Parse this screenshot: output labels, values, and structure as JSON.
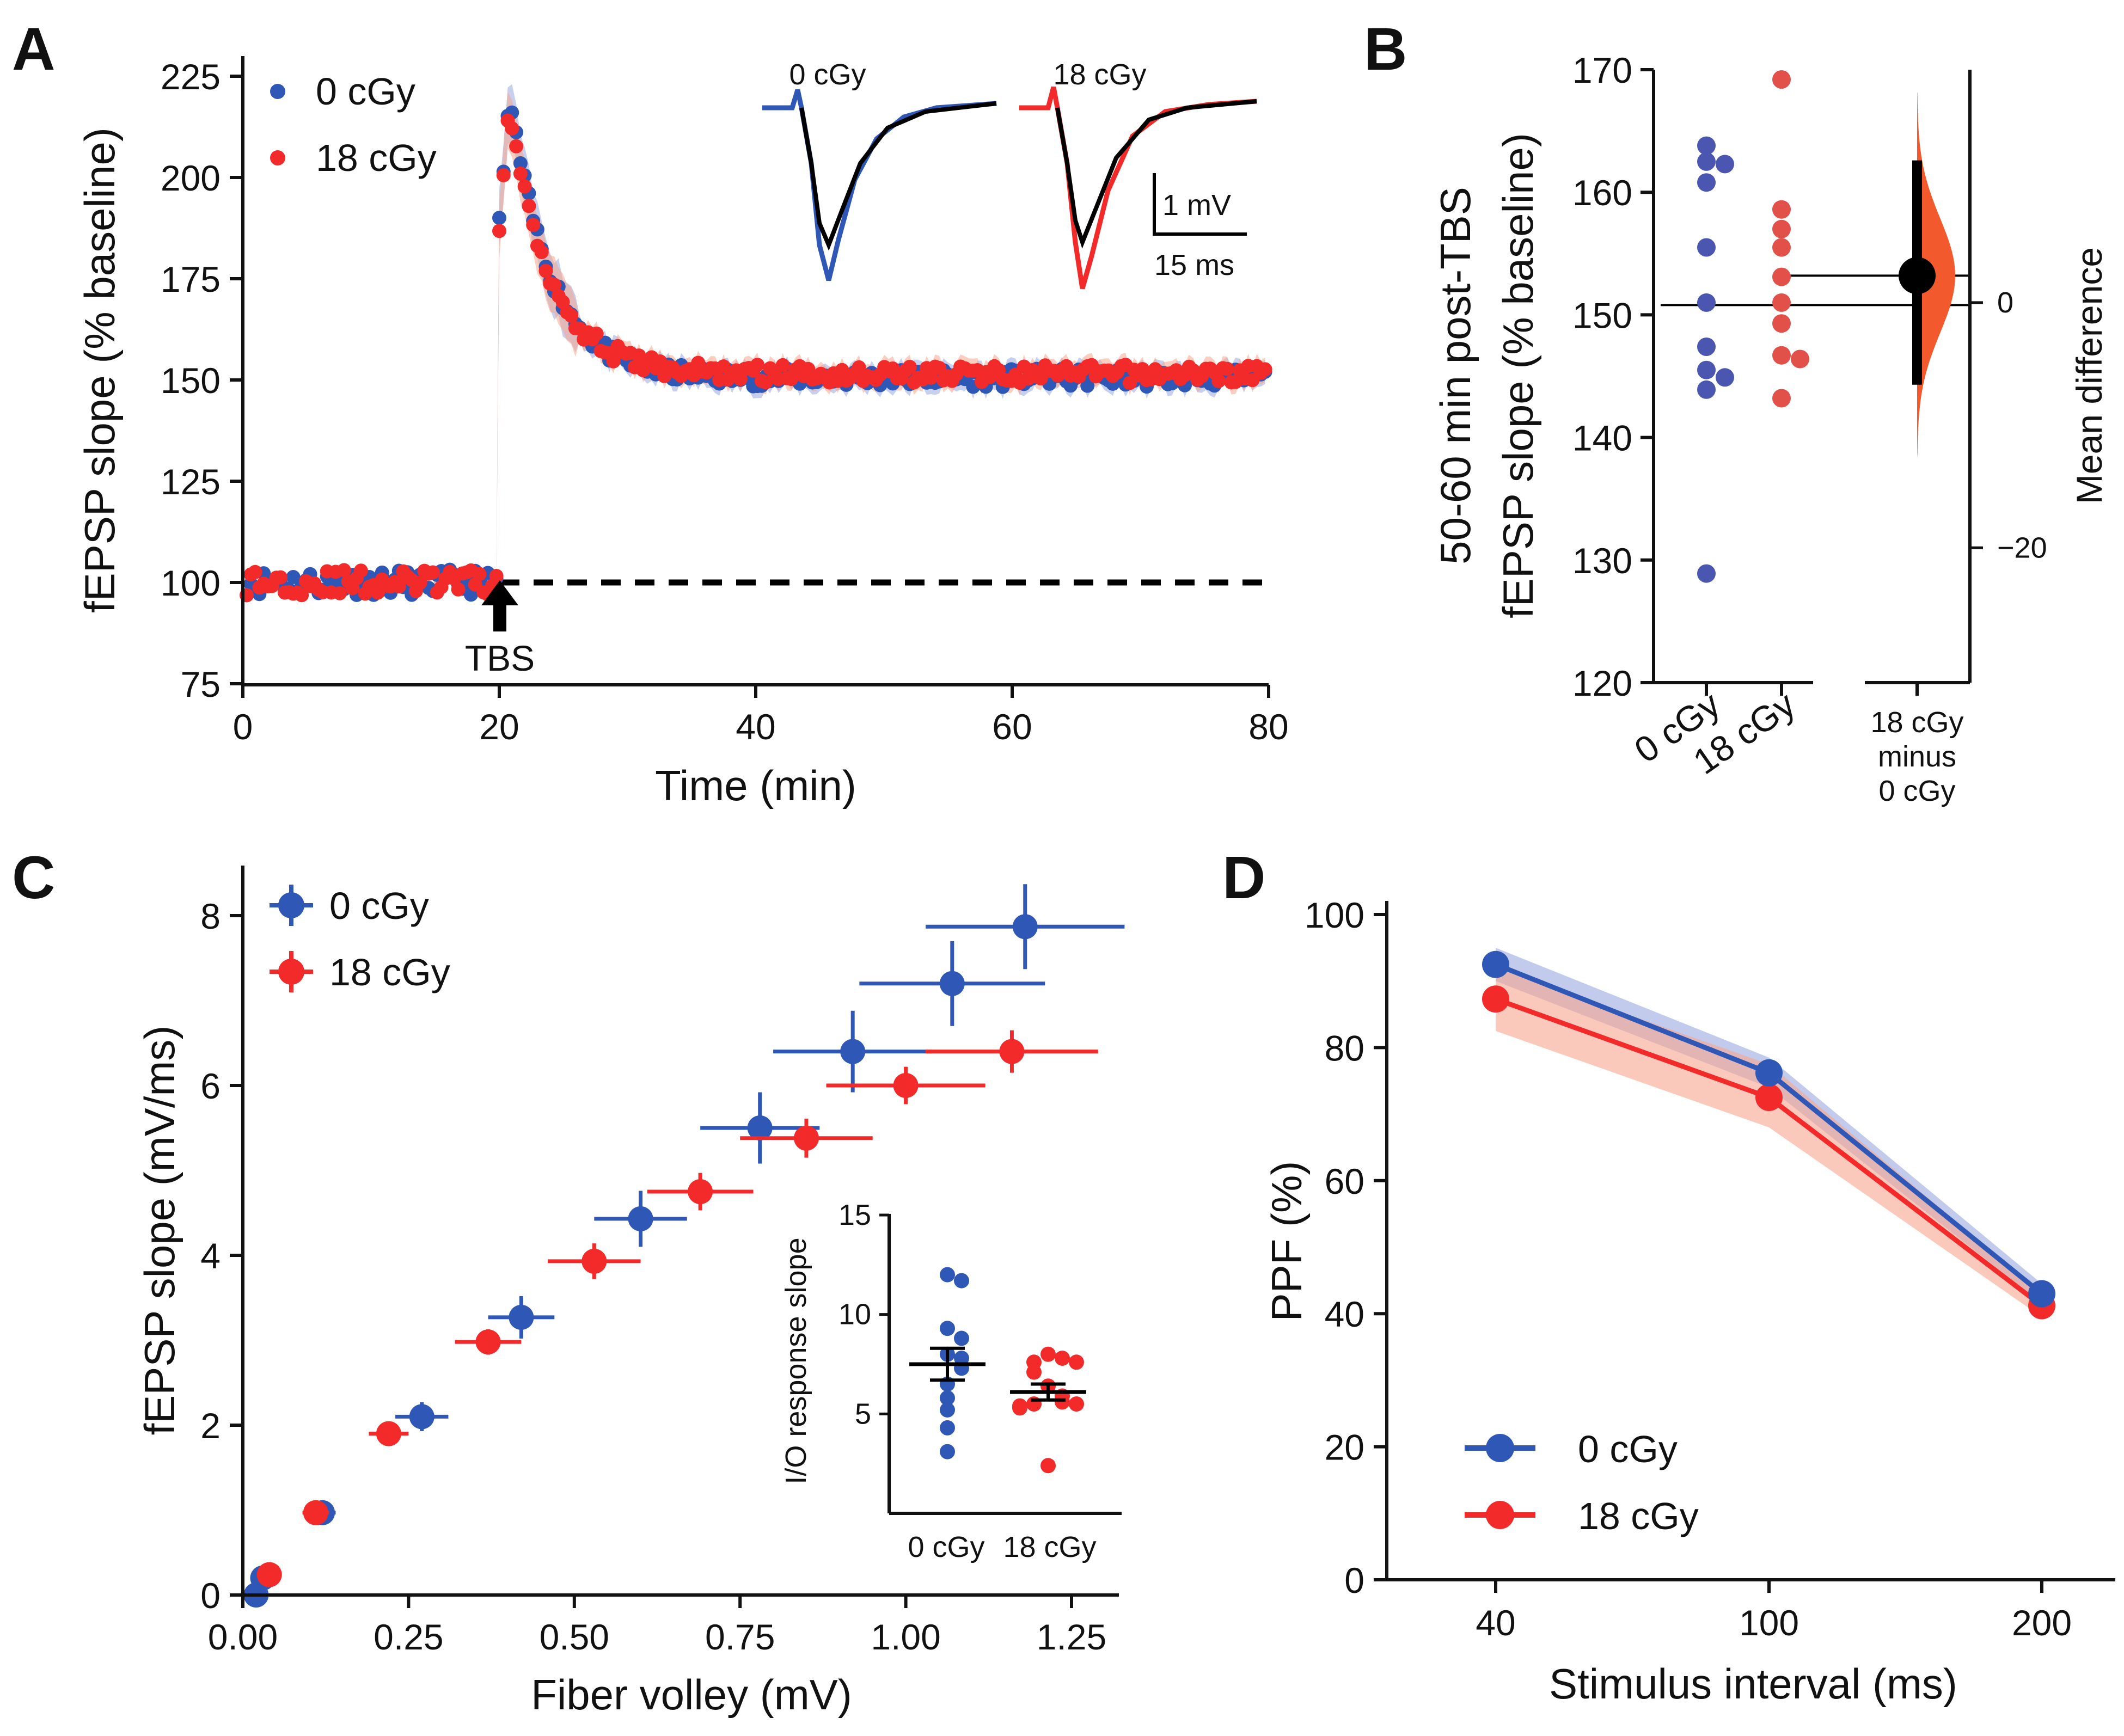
{
  "colors": {
    "blue": "#2f57b5",
    "red": "#f22a2a",
    "black": "#000000",
    "redFill": "#f6a58d",
    "blueFill": "#9aa9e0",
    "estRed": "#f25a2e"
  },
  "chart_data": [
    {
      "panel": "A",
      "type": "scatter",
      "xlabel": "Time (min)",
      "ylabel": "fEPSP slope (% baseline)",
      "xticks": [
        "0",
        "20",
        "40",
        "60",
        "80"
      ],
      "yticks": [
        "75",
        "100",
        "125",
        "150",
        "175",
        "200",
        "225"
      ],
      "xlim": [
        0,
        80
      ],
      "ylim": [
        75,
        230
      ],
      "annotation": "TBS",
      "tbs_time": 20,
      "baseline": 100,
      "legend": [
        "0 cGy",
        "18 cGy"
      ],
      "inset": {
        "labels": [
          "0 cGy",
          "18 cGy"
        ],
        "scale_amplitude": "1 mV",
        "scale_time": "15 ms"
      },
      "series": [
        {
          "name": "0 cGy",
          "color": "#2f57b5",
          "baseline_mean": 100,
          "peak": 220,
          "plateau": 150.5
        },
        {
          "name": "18 cGy",
          "color": "#f22a2a",
          "baseline_mean": 100,
          "peak": 217,
          "plateau": 151.5
        }
      ]
    },
    {
      "panel": "B",
      "type": "scatter",
      "ylabel_line1": "50-60 min post-TBS",
      "ylabel_line2": "fEPSP slope (% baseline)",
      "right_ylabel": "Mean difference",
      "ylim": [
        120,
        170
      ],
      "yticks": [
        "120",
        "130",
        "140",
        "150",
        "160",
        "170"
      ],
      "right_ticks": [
        "0",
        "−20"
      ],
      "categories": [
        "0 cGy",
        "18 cGy"
      ],
      "diff_label": [
        "18 cGy",
        "minus",
        "0 cGy"
      ],
      "series": [
        {
          "name": "0 cGy",
          "values": [
            163.8,
            162.5,
            162.3,
            160.8,
            155.5,
            151.0,
            147.4,
            145.5,
            144.9,
            143.9,
            128.9
          ]
        },
        {
          "name": "18 cGy",
          "values": [
            169.2,
            158.6,
            157.0,
            155.5,
            153.1,
            151.0,
            149.3,
            146.7,
            146.4,
            143.2
          ]
        }
      ],
      "group_means": [
        150.8,
        153.2
      ],
      "mean_difference": 2.4,
      "ci": [
        -6.5,
        11.8
      ],
      "right_axis_range": [
        -31,
        19
      ]
    },
    {
      "panel": "C",
      "type": "scatter",
      "xlabel": "Fiber volley (mV)",
      "ylabel": "fEPSP slope (mV/ms)",
      "xticks": [
        "0.00",
        "0.25",
        "0.50",
        "0.75",
        "1.00",
        "1.25"
      ],
      "yticks": [
        "0",
        "2",
        "4",
        "6",
        "8"
      ],
      "xlim": [
        0,
        1.32
      ],
      "ylim": [
        0,
        8.5
      ],
      "legend": [
        "0 cGy",
        "18 cGy"
      ],
      "series": [
        {
          "name": "0 cGy",
          "points": [
            {
              "x": 0.02,
              "y": 0.0,
              "xerr": 0.0,
              "yerr": 0.0
            },
            {
              "x": 0.03,
              "y": 0.2,
              "xerr": 0.01,
              "yerr": 0.05
            },
            {
              "x": 0.12,
              "y": 0.97,
              "xerr": 0.02,
              "yerr": 0.07
            },
            {
              "x": 0.27,
              "y": 2.1,
              "xerr": 0.04,
              "yerr": 0.17
            },
            {
              "x": 0.42,
              "y": 3.27,
              "xerr": 0.05,
              "yerr": 0.25
            },
            {
              "x": 0.6,
              "y": 4.43,
              "xerr": 0.07,
              "yerr": 0.33
            },
            {
              "x": 0.78,
              "y": 5.5,
              "xerr": 0.09,
              "yerr": 0.42
            },
            {
              "x": 0.92,
              "y": 6.4,
              "xerr": 0.12,
              "yerr": 0.48
            },
            {
              "x": 1.07,
              "y": 7.2,
              "xerr": 0.14,
              "yerr": 0.5
            },
            {
              "x": 1.18,
              "y": 7.87,
              "xerr": 0.15,
              "yerr": 0.5
            }
          ]
        },
        {
          "name": "18 cGy",
          "points": [
            {
              "x": 0.04,
              "y": 0.24,
              "xerr": 0.01,
              "yerr": 0.05
            },
            {
              "x": 0.11,
              "y": 0.97,
              "xerr": 0.02,
              "yerr": 0.05
            },
            {
              "x": 0.22,
              "y": 1.9,
              "xerr": 0.03,
              "yerr": 0.07
            },
            {
              "x": 0.37,
              "y": 2.98,
              "xerr": 0.05,
              "yerr": 0.15
            },
            {
              "x": 0.53,
              "y": 3.93,
              "xerr": 0.07,
              "yerr": 0.21
            },
            {
              "x": 0.69,
              "y": 4.75,
              "xerr": 0.08,
              "yerr": 0.22
            },
            {
              "x": 0.85,
              "y": 5.38,
              "xerr": 0.1,
              "yerr": 0.23
            },
            {
              "x": 1.0,
              "y": 6.0,
              "xerr": 0.12,
              "yerr": 0.22
            },
            {
              "x": 1.16,
              "y": 6.4,
              "xerr": 0.13,
              "yerr": 0.25
            }
          ]
        }
      ],
      "inset": {
        "ylabel": "I/O response slope",
        "yticks": [
          "5",
          "10",
          "15"
        ],
        "ylim": [
          0,
          15
        ],
        "categories": [
          "0 cGy",
          "18 cGy"
        ],
        "series": [
          {
            "name": "0 cGy",
            "values": [
              12.0,
              11.7,
              9.3,
              8.8,
              8.0,
              7.8,
              7.3,
              6.5,
              5.8,
              5.2,
              4.3,
              3.1
            ],
            "mean": 7.5,
            "sem": 0.8
          },
          {
            "name": "18 cGy",
            "values": [
              8.0,
              7.8,
              7.6,
              7.6,
              7.1,
              6.4,
              5.9,
              5.6,
              5.5,
              5.5,
              5.4,
              5.3,
              2.4
            ],
            "mean": 6.1,
            "sem": 0.4
          }
        ]
      }
    },
    {
      "panel": "D",
      "type": "line",
      "xlabel": "Stimulus interval (ms)",
      "ylabel": "PPF (%)",
      "categories": [
        "40",
        "100",
        "200"
      ],
      "yticks": [
        "0",
        "20",
        "40",
        "60",
        "80",
        "100"
      ],
      "ylim": [
        0,
        100
      ],
      "legend": [
        "0 cGy",
        "18 cGy"
      ],
      "series": [
        {
          "name": "0 cGy",
          "values": [
            92.5,
            76.2,
            43.0
          ],
          "band": [
            [
              90.0,
              95.0
            ],
            [
              74.0,
              78.5
            ],
            [
              41.5,
              44.5
            ]
          ]
        },
        {
          "name": "18 cGy",
          "values": [
            87.3,
            72.5,
            41.2
          ],
          "band": [
            [
              82.5,
              92.0
            ],
            [
              68.0,
              77.5
            ],
            [
              39.5,
              43.0
            ]
          ]
        }
      ]
    }
  ]
}
